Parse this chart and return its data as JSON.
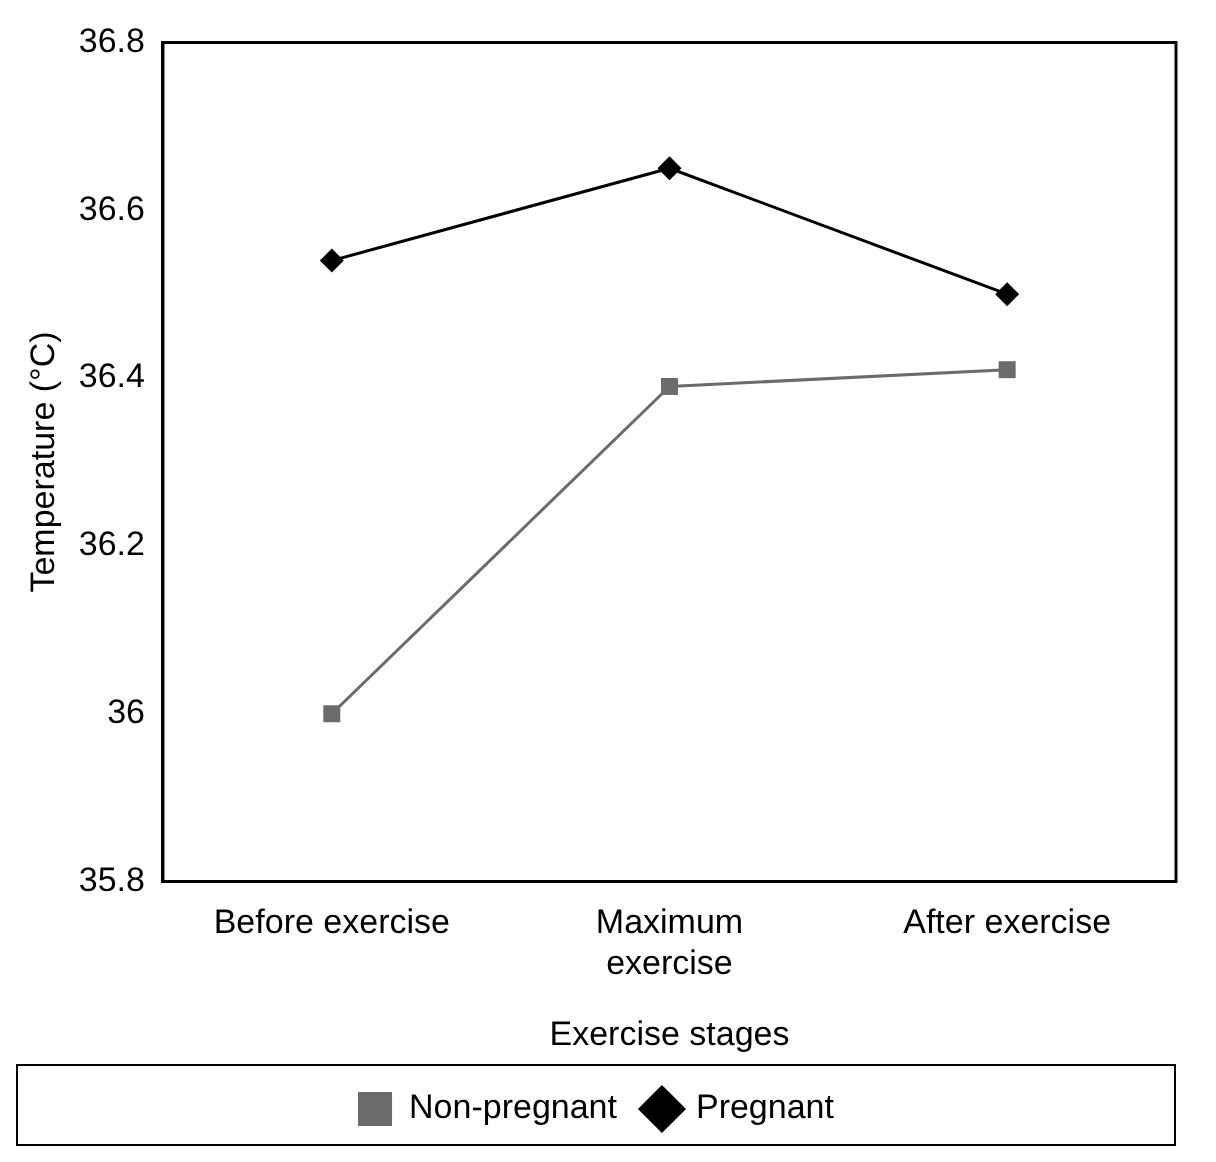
{
  "chart_data": {
    "type": "line",
    "xlabel": "Exercise stages",
    "ylabel": "Temperature (°C)",
    "categories": [
      "Before exercise",
      "Maximum exercise",
      "After exercise"
    ],
    "series": [
      {
        "name": "Non-pregnant",
        "color": "#6b6b6b",
        "values": [
          36.0,
          36.39,
          36.41
        ],
        "marker": "square"
      },
      {
        "name": "Pregnant",
        "color": "#000000",
        "values": [
          36.54,
          36.65,
          36.5
        ],
        "marker": "diamond"
      }
    ],
    "ylim": [
      35.8,
      36.8
    ],
    "yticks": [
      35.8,
      36,
      36.2,
      36.4,
      36.6,
      36.8
    ],
    "grid": false,
    "legend": "bottom",
    "line_style": "solid"
  }
}
